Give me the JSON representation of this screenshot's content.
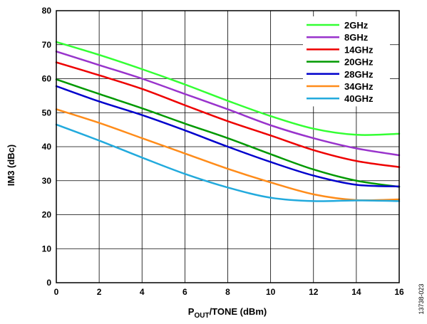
{
  "figure_id": "13738-023",
  "chart_data": {
    "type": "line",
    "title": "",
    "xlabel": {
      "main": "P",
      "sub": "OUT",
      "rest": "/TONE (dBm)"
    },
    "ylabel": "IM3 (dBc)",
    "xlim": [
      0,
      16
    ],
    "ylim": [
      0,
      80
    ],
    "xticks": [
      "0",
      "2",
      "4",
      "6",
      "8",
      "10",
      "12",
      "14",
      "16"
    ],
    "yticks": [
      "0",
      "10",
      "20",
      "30",
      "40",
      "50",
      "60",
      "70",
      "80"
    ],
    "grid": true,
    "legend_position": "top-right",
    "x": [
      0,
      2,
      4,
      6,
      8,
      10,
      12,
      14,
      16
    ],
    "series": [
      {
        "name": "2GHz",
        "color": "#33ff33",
        "values": [
          70.8,
          67.0,
          62.8,
          58.3,
          53.5,
          49.0,
          45.3,
          43.5,
          43.8
        ]
      },
      {
        "name": "8GHz",
        "color": "#9933cc",
        "values": [
          68.0,
          64.0,
          60.0,
          55.5,
          51.0,
          46.3,
          42.5,
          39.5,
          37.5
        ]
      },
      {
        "name": "14GHz",
        "color": "#ee0000",
        "values": [
          64.8,
          61.0,
          57.0,
          52.2,
          47.5,
          43.3,
          39.0,
          35.8,
          34.0
        ]
      },
      {
        "name": "20GHz",
        "color": "#009900",
        "values": [
          59.8,
          55.5,
          51.3,
          46.8,
          42.5,
          37.8,
          33.3,
          30.0,
          28.2
        ]
      },
      {
        "name": "28GHz",
        "color": "#0000cc",
        "values": [
          57.8,
          53.3,
          49.3,
          44.8,
          40.0,
          35.5,
          31.5,
          28.8,
          28.3
        ]
      },
      {
        "name": "34GHz",
        "color": "#ff8c1a",
        "values": [
          51.0,
          47.0,
          42.5,
          38.0,
          33.5,
          29.5,
          26.0,
          24.3,
          24.5
        ]
      },
      {
        "name": "40GHz",
        "color": "#22aadd",
        "values": [
          46.5,
          41.8,
          36.8,
          32.0,
          28.0,
          25.0,
          24.0,
          24.2,
          24.0
        ]
      }
    ]
  }
}
